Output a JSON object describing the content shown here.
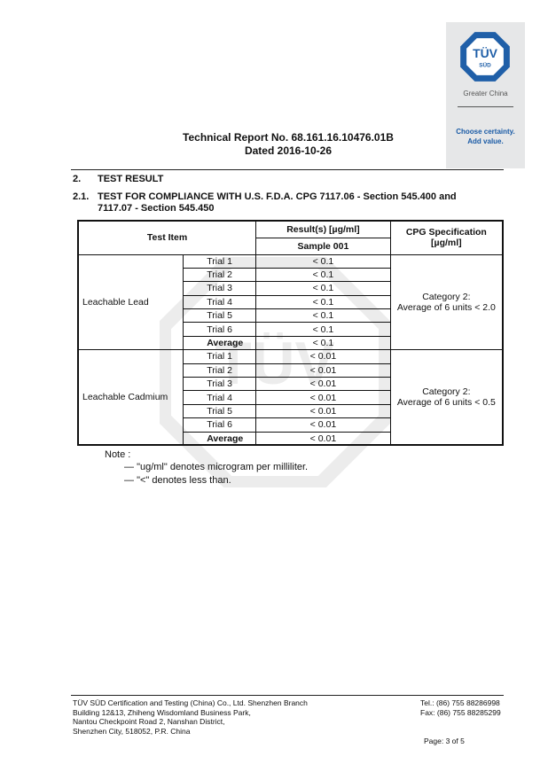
{
  "brand": {
    "logo_text": "TÜV",
    "logo_sub": "SÜD",
    "region": "Greater China",
    "slogan_1": "Choose certainty.",
    "slogan_2": "Add value.",
    "accent": "#1a5ba6"
  },
  "header": {
    "report_no": "Technical Report No. 68.161.16.10476.01B",
    "dated": "Dated 2016-10-26"
  },
  "section": {
    "num": "2.",
    "title": "TEST RESULT",
    "sub_num": "2.1.",
    "sub_title_1": "TEST FOR COMPLIANCE WITH U.S. F.D.A. CPG 7117.06 - Section 545.400 and",
    "sub_title_2": "7117.07 - Section 545.450"
  },
  "table": {
    "headers": {
      "item": "Test Item",
      "result": "Result(s) [µg/ml]",
      "sample": "Sample 001",
      "spec": "CPG Specification [µg/ml]"
    },
    "groups": [
      {
        "item": "Leachable Lead",
        "spec_1": "Category 2:",
        "spec_2": "Average of 6 units < 2.0",
        "rows": [
          {
            "t": "Trial 1",
            "v": "< 0.1"
          },
          {
            "t": "Trial 2",
            "v": "< 0.1"
          },
          {
            "t": "Trial 3",
            "v": "< 0.1"
          },
          {
            "t": "Trial 4",
            "v": "< 0.1"
          },
          {
            "t": "Trial 5",
            "v": "< 0.1"
          },
          {
            "t": "Trial 6",
            "v": "< 0.1"
          },
          {
            "t": "Average",
            "v": "< 0.1"
          }
        ]
      },
      {
        "item": "Leachable  Cadmium",
        "spec_1": "Category 2:",
        "spec_2": "Average of 6 units < 0.5",
        "rows": [
          {
            "t": "Trial 1",
            "v": "< 0.01"
          },
          {
            "t": "Trial 2",
            "v": "< 0.01"
          },
          {
            "t": "Trial 3",
            "v": "< 0.01"
          },
          {
            "t": "Trial 4",
            "v": "< 0.01"
          },
          {
            "t": "Trial 5",
            "v": "< 0.01"
          },
          {
            "t": "Trial 6",
            "v": "< 0.01"
          },
          {
            "t": "Average",
            "v": "< 0.01"
          }
        ]
      }
    ]
  },
  "note": {
    "label": "Note :",
    "items": [
      "\"ug/ml\" denotes microgram per milliliter.",
      "\"<\" denotes less than."
    ]
  },
  "footer": {
    "address": [
      "TÜV SÜD Certification and Testing (China) Co., Ltd. Shenzhen Branch",
      "Building 12&13, Zhiheng Wisdomland Business Park,",
      "Nantou Checkpoint Road 2, Nanshan District,",
      "Shenzhen City, 518052, P.R. China"
    ],
    "tel": "Tel.: (86) 755 88286998",
    "fax": "Fax: (86) 755 88285299",
    "page": "Page: 3 of  5"
  }
}
